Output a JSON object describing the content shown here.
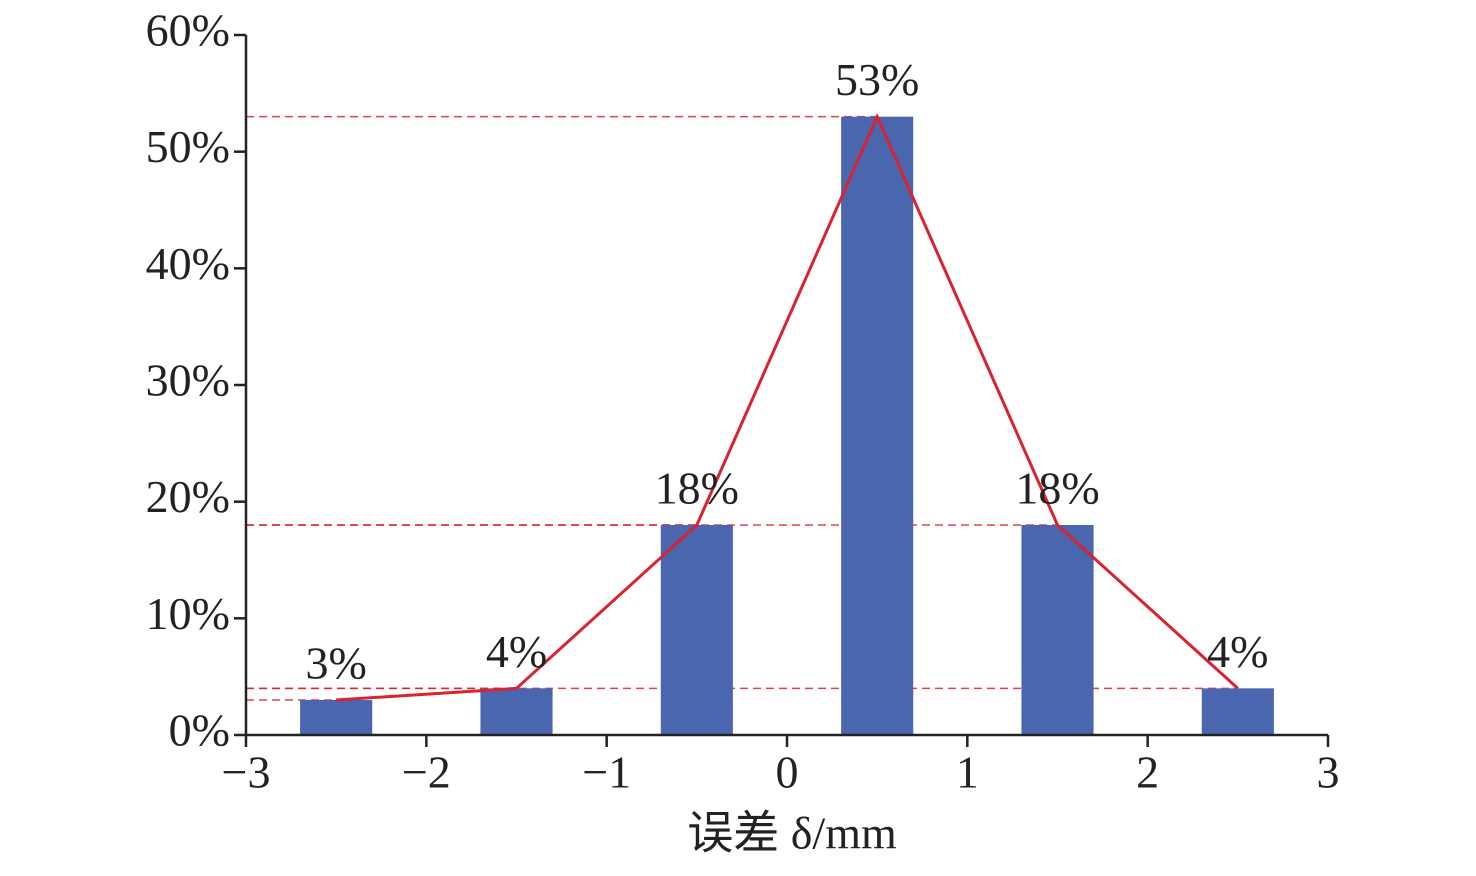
{
  "chart_data": {
    "type": "bar",
    "x_label": "误差 δ/mm",
    "x": [
      -2.5,
      -1.5,
      -0.5,
      0.5,
      1.5,
      2.5
    ],
    "values": [
      3,
      4,
      18,
      53,
      18,
      4
    ],
    "value_labels": [
      "3%",
      "4%",
      "18%",
      "53%",
      "18%",
      "4%"
    ],
    "color": "#4a66ae",
    "line_color": "#d9232e",
    "xlim": [
      -3,
      3
    ],
    "xticks": [
      {
        "value": -3,
        "label": "−3"
      },
      {
        "value": -2,
        "label": "−2"
      },
      {
        "value": -1,
        "label": "−1"
      },
      0,
      1,
      2,
      3
    ],
    "ylim": [
      0,
      60
    ],
    "yticks": [
      {
        "value": 0,
        "label": "0%"
      },
      {
        "value": 10,
        "label": "10%"
      },
      {
        "value": 20,
        "label": "20%"
      },
      {
        "value": 30,
        "label": "30%"
      },
      {
        "value": 40,
        "label": "40%"
      },
      {
        "value": 50,
        "label": "50%"
      },
      {
        "value": 60,
        "label": "60%"
      }
    ],
    "bar_width": 0.4
  }
}
